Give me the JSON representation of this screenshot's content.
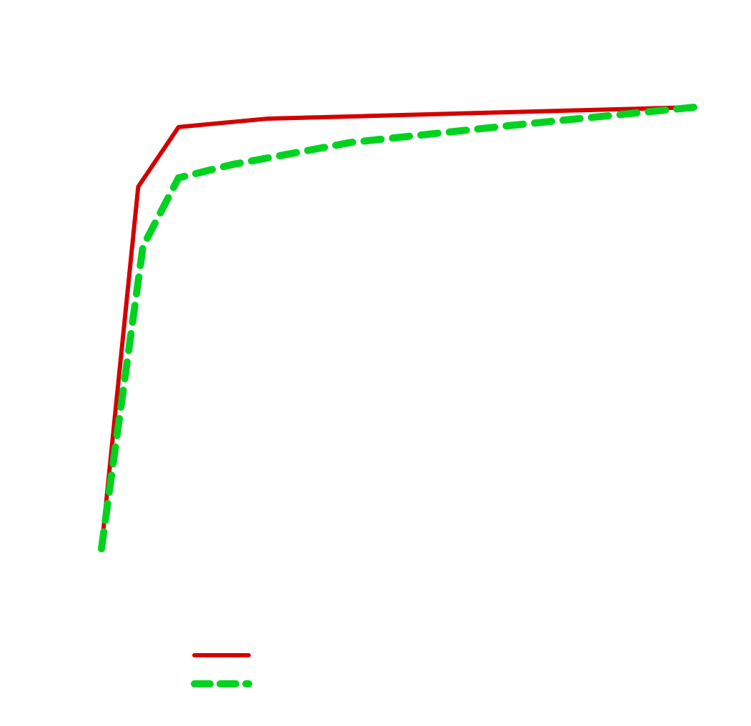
{
  "chart_data": {
    "type": "line",
    "title": "",
    "xlabel": "",
    "ylabel": "",
    "grid": false,
    "axes_visible": false,
    "legend_location": "bottom-left",
    "series": [
      {
        "color": "#d40000",
        "line_style": "solid",
        "points": [
          [
            0.0,
            0.0
          ],
          [
            0.062,
            0.82
          ],
          [
            0.13,
            0.955
          ],
          [
            0.28,
            0.974
          ],
          [
            1.0,
            1.0
          ]
        ]
      },
      {
        "color": "#00d31f",
        "line_style": "dashed",
        "points": [
          [
            0.0,
            0.0
          ],
          [
            0.07,
            0.685
          ],
          [
            0.13,
            0.84
          ],
          [
            0.22,
            0.87
          ],
          [
            0.42,
            0.92
          ],
          [
            0.7,
            0.96
          ],
          [
            1.0,
            1.0
          ]
        ]
      }
    ]
  }
}
